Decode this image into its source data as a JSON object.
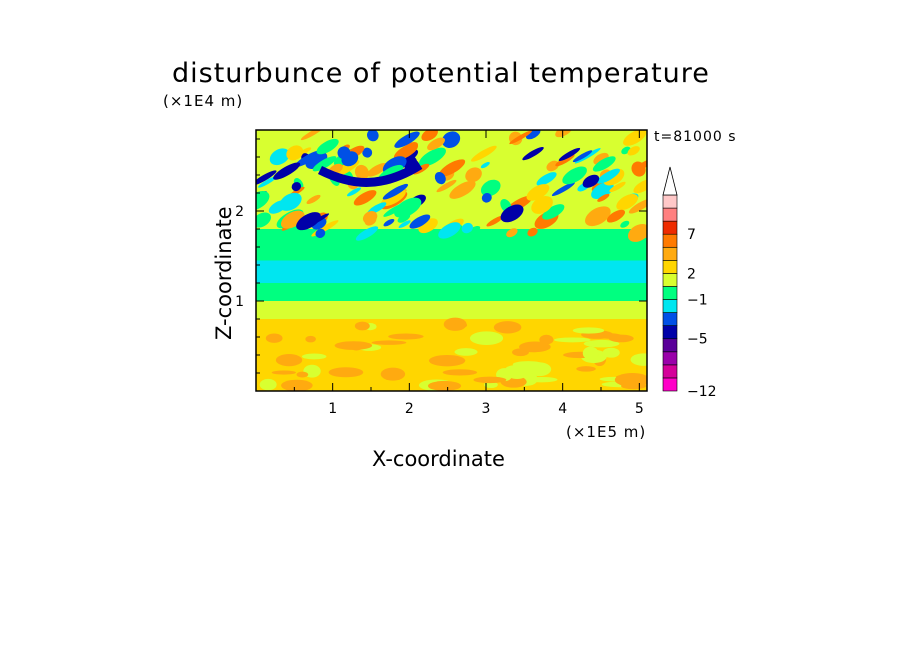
{
  "chart_data": {
    "type": "heatmap",
    "title": "disturbunce of potential temperature",
    "xlabel": "X-coordinate",
    "ylabel": "Z-coordinate",
    "x_unit_label": "(×1E5 m)",
    "y_unit_label": "(×1E4 m)",
    "annotation": "t=81000 s",
    "xlim": [
      0,
      5.1
    ],
    "ylim": [
      0,
      2.9
    ],
    "x_ticks": [
      "1",
      "2",
      "3",
      "4",
      "5"
    ],
    "y_ticks": [
      "1",
      "2"
    ],
    "colorbar_labels": [
      "7",
      "2",
      "−1",
      "−5",
      "−12"
    ],
    "colorbar": {
      "colors": [
        "#ff00c8",
        "#d4009a",
        "#9a00aa",
        "#5a0099",
        "#0000a8",
        "#0050e6",
        "#00e6f0",
        "#00ff80",
        "#d8ff30",
        "#ffd600",
        "#ffaa10",
        "#ff7a00",
        "#ee2b00",
        "#ff8080",
        "#ffc8c8"
      ],
      "extend": "max"
    },
    "field_bands": [
      {
        "z_range": [
          0.0,
          0.8
        ],
        "color": "#ffd600",
        "note": "warm low layer"
      },
      {
        "z_range": [
          0.8,
          1.0
        ],
        "color": "#d8ff30"
      },
      {
        "z_range": [
          1.0,
          1.2
        ],
        "color": "#00ff80"
      },
      {
        "z_range": [
          1.2,
          1.45
        ],
        "color": "#00e6f0"
      },
      {
        "z_range": [
          1.45,
          1.8
        ],
        "color": "#00ff80"
      },
      {
        "z_range": [
          1.8,
          2.9
        ],
        "color": "#d8ff30",
        "note": "wavy mixed region"
      }
    ],
    "grid": false
  }
}
